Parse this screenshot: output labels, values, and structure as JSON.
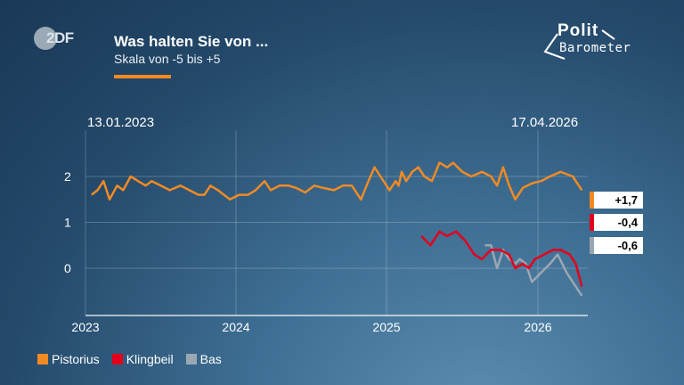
{
  "header": {
    "title": "Was halten Sie von ...",
    "subtitle": "Skala von -5 bis +5",
    "logo_text": "2DF",
    "brand_line1": "Polit",
    "brand_line2": "Barometer"
  },
  "dates": {
    "start": "13.01.2023",
    "end": "17.04.2026"
  },
  "chart_data": {
    "type": "line",
    "x_ticks": [
      "2023",
      "2024",
      "2025",
      "2026"
    ],
    "y_ticks": [
      "2",
      "1",
      "0"
    ],
    "ylim": [
      -1,
      3
    ],
    "series": [
      {
        "name": "Pistorius",
        "color": "#f08a24",
        "end_label": "+1,7",
        "points": [
          [
            2023.04,
            1.6
          ],
          [
            2023.08,
            1.7
          ],
          [
            2023.12,
            1.9
          ],
          [
            2023.16,
            1.5
          ],
          [
            2023.21,
            1.8
          ],
          [
            2023.25,
            1.7
          ],
          [
            2023.3,
            2.0
          ],
          [
            2023.35,
            1.9
          ],
          [
            2023.4,
            1.8
          ],
          [
            2023.44,
            1.9
          ],
          [
            2023.5,
            1.8
          ],
          [
            2023.56,
            1.7
          ],
          [
            2023.63,
            1.8
          ],
          [
            2023.69,
            1.7
          ],
          [
            2023.75,
            1.6
          ],
          [
            2023.79,
            1.6
          ],
          [
            2023.83,
            1.8
          ],
          [
            2023.88,
            1.7
          ],
          [
            2023.92,
            1.6
          ],
          [
            2023.96,
            1.5
          ],
          [
            2024.02,
            1.6
          ],
          [
            2024.08,
            1.6
          ],
          [
            2024.13,
            1.7
          ],
          [
            2024.19,
            1.9
          ],
          [
            2024.23,
            1.7
          ],
          [
            2024.29,
            1.8
          ],
          [
            2024.35,
            1.8
          ],
          [
            2024.4,
            1.75
          ],
          [
            2024.46,
            1.65
          ],
          [
            2024.52,
            1.8
          ],
          [
            2024.58,
            1.75
          ],
          [
            2024.65,
            1.7
          ],
          [
            2024.71,
            1.8
          ],
          [
            2024.77,
            1.8
          ],
          [
            2024.83,
            1.5
          ],
          [
            2024.88,
            1.9
          ],
          [
            2024.92,
            2.2
          ],
          [
            2024.96,
            2.0
          ],
          [
            2025.02,
            1.7
          ],
          [
            2025.06,
            1.9
          ],
          [
            2025.08,
            1.8
          ],
          [
            2025.1,
            2.1
          ],
          [
            2025.13,
            1.9
          ],
          [
            2025.17,
            2.1
          ],
          [
            2025.21,
            2.2
          ],
          [
            2025.25,
            2.0
          ],
          [
            2025.3,
            1.9
          ],
          [
            2025.35,
            2.3
          ],
          [
            2025.4,
            2.2
          ],
          [
            2025.44,
            2.3
          ],
          [
            2025.5,
            2.1
          ],
          [
            2025.56,
            2.0
          ],
          [
            2025.63,
            2.1
          ],
          [
            2025.69,
            2.0
          ],
          [
            2025.73,
            1.8
          ],
          [
            2025.77,
            2.2
          ],
          [
            2025.81,
            1.8
          ],
          [
            2025.85,
            1.5
          ],
          [
            2025.9,
            1.75
          ],
          [
            2025.96,
            1.85
          ],
          [
            2026.02,
            1.9
          ],
          [
            2026.08,
            2.0
          ],
          [
            2026.15,
            2.1
          ],
          [
            2026.23,
            2.0
          ],
          [
            2026.29,
            1.7
          ]
        ]
      },
      {
        "name": "Klingbeil",
        "color": "#e3001b",
        "end_label": "-0,4",
        "points": [
          [
            2025.23,
            0.7
          ],
          [
            2025.29,
            0.5
          ],
          [
            2025.35,
            0.8
          ],
          [
            2025.4,
            0.7
          ],
          [
            2025.46,
            0.8
          ],
          [
            2025.52,
            0.6
          ],
          [
            2025.58,
            0.3
          ],
          [
            2025.63,
            0.2
          ],
          [
            2025.69,
            0.4
          ],
          [
            2025.75,
            0.4
          ],
          [
            2025.81,
            0.3
          ],
          [
            2025.85,
            0.0
          ],
          [
            2025.9,
            0.1
          ],
          [
            2025.94,
            0.0
          ],
          [
            2025.98,
            0.2
          ],
          [
            2026.04,
            0.3
          ],
          [
            2026.1,
            0.4
          ],
          [
            2026.15,
            0.4
          ],
          [
            2026.21,
            0.3
          ],
          [
            2026.25,
            0.1
          ],
          [
            2026.29,
            -0.4
          ]
        ]
      },
      {
        "name": "Bas",
        "color": "#9aa7b3",
        "end_label": "-0,6",
        "points": [
          [
            2025.65,
            0.5
          ],
          [
            2025.69,
            0.5
          ],
          [
            2025.73,
            0.0
          ],
          [
            2025.77,
            0.4
          ],
          [
            2025.81,
            0.2
          ],
          [
            2025.85,
            0.1
          ],
          [
            2025.88,
            0.2
          ],
          [
            2025.92,
            0.1
          ],
          [
            2025.96,
            -0.3
          ],
          [
            2026.02,
            -0.1
          ],
          [
            2026.08,
            0.1
          ],
          [
            2026.13,
            0.3
          ],
          [
            2026.19,
            -0.1
          ],
          [
            2026.25,
            -0.4
          ],
          [
            2026.29,
            -0.6
          ]
        ]
      }
    ]
  }
}
